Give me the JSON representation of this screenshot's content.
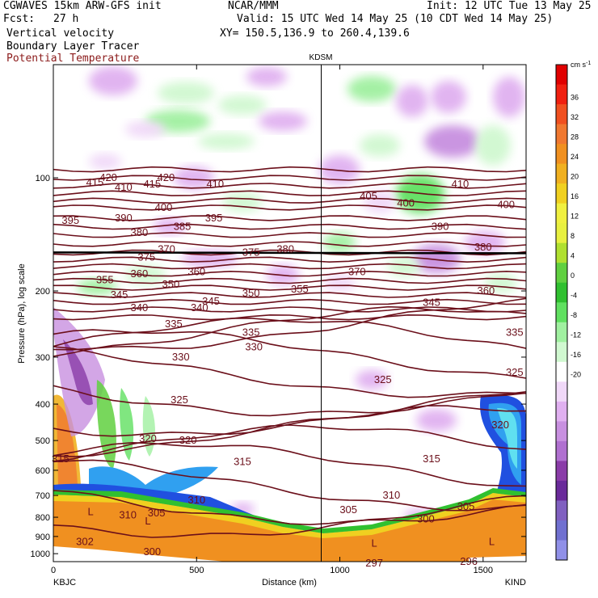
{
  "header": {
    "model": "CGWAVES 15km ARW-GFS init",
    "fcst_label": "Fcst:",
    "fcst_value": "27 h",
    "center": "NCAR/MMM",
    "init": "Init: 12 UTC Tue 13 May 25",
    "valid": "Valid: 15 UTC Wed 14 May 25 (10 CDT Wed 14 May 25)",
    "field1": "Vertical velocity",
    "field2": "Boundary Layer Tracer",
    "field3": "Potential Temperature",
    "xy": "XY= 150.5,136.9 to 260.4,139.6"
  },
  "colors": {
    "theta": "#6b0f1a",
    "tropopause": "#000000",
    "frame": "#000000"
  },
  "chart_data": {
    "type": "heatmap",
    "xlabel": "Distance (km)",
    "ylabel": "Pressure (hPa), log scale",
    "xlim": [
      0,
      1650
    ],
    "ylim": [
      1050,
      50
    ],
    "yscale": "log",
    "x_ticks": [
      0,
      500,
      1000,
      1500
    ],
    "y_ticks": [
      100,
      200,
      300,
      400,
      500,
      600,
      700,
      800,
      900,
      1000
    ],
    "station_left": "KBJC",
    "station_right": "KIND",
    "station_mid": {
      "name": "KDSM",
      "x": 935
    },
    "colorbar": {
      "unit": "cm s",
      "unit_exp": "-1",
      "ticks": [
        36,
        32,
        28,
        24,
        20,
        16,
        12,
        8,
        4,
        0,
        -4,
        -8,
        -12,
        -16,
        -20
      ],
      "colors": [
        "#e00000",
        "#f02010",
        "#f05020",
        "#f07830",
        "#f09020",
        "#f0b020",
        "#f0d020",
        "#f0f040",
        "#e8f040",
        "#b0e030",
        "#60d040",
        "#30c030",
        "#60e060",
        "#a0f0a0",
        "#d0f8d0",
        "#ffffff",
        "#f0d8f8",
        "#e0b0f0",
        "#c890e0",
        "#b070d0",
        "#8a3ca8",
        "#6a2a9a",
        "#8060c0",
        "#7070d0",
        "#9090e8"
      ]
    },
    "theta_labels": [
      {
        "v": "415",
        "x": 145,
        "p": 103
      },
      {
        "v": "420",
        "x": 192,
        "p": 100
      },
      {
        "v": "410",
        "x": 245,
        "p": 106
      },
      {
        "v": "415",
        "x": 345,
        "p": 104
      },
      {
        "v": "420",
        "x": 393,
        "p": 100
      },
      {
        "v": "410",
        "x": 565,
        "p": 104
      },
      {
        "v": "405",
        "x": 1100,
        "p": 112
      },
      {
        "v": "400",
        "x": 1230,
        "p": 117
      },
      {
        "v": "410",
        "x": 1420,
        "p": 104
      },
      {
        "v": "400",
        "x": 1580,
        "p": 118
      },
      {
        "v": "395",
        "x": 60,
        "p": 130
      },
      {
        "v": "390",
        "x": 245,
        "p": 128
      },
      {
        "v": "400",
        "x": 385,
        "p": 120
      },
      {
        "v": "380",
        "x": 300,
        "p": 140
      },
      {
        "v": "385",
        "x": 450,
        "p": 135
      },
      {
        "v": "395",
        "x": 560,
        "p": 128
      },
      {
        "v": "390",
        "x": 1350,
        "p": 135
      },
      {
        "v": "370",
        "x": 395,
        "p": 155
      },
      {
        "v": "375",
        "x": 325,
        "p": 163
      },
      {
        "v": "360",
        "x": 300,
        "p": 180
      },
      {
        "v": "360",
        "x": 500,
        "p": 178
      },
      {
        "v": "355",
        "x": 180,
        "p": 187
      },
      {
        "v": "345",
        "x": 230,
        "p": 205
      },
      {
        "v": "350",
        "x": 410,
        "p": 192
      },
      {
        "v": "345",
        "x": 550,
        "p": 213
      },
      {
        "v": "375",
        "x": 690,
        "p": 158
      },
      {
        "v": "380",
        "x": 810,
        "p": 155
      },
      {
        "v": "350",
        "x": 690,
        "p": 203
      },
      {
        "v": "355",
        "x": 860,
        "p": 198
      },
      {
        "v": "370",
        "x": 1060,
        "p": 178
      },
      {
        "v": "360",
        "x": 1510,
        "p": 200
      },
      {
        "v": "345",
        "x": 1320,
        "p": 215
      },
      {
        "v": "380",
        "x": 1500,
        "p": 153
      },
      {
        "v": "340",
        "x": 300,
        "p": 222
      },
      {
        "v": "335",
        "x": 420,
        "p": 245
      },
      {
        "v": "340",
        "x": 510,
        "p": 222
      },
      {
        "v": "335",
        "x": 690,
        "p": 258
      },
      {
        "v": "330",
        "x": 700,
        "p": 282
      },
      {
        "v": "335",
        "x": 1610,
        "p": 258
      },
      {
        "v": "330",
        "x": 445,
        "p": 300
      },
      {
        "v": "325",
        "x": 440,
        "p": 390
      },
      {
        "v": "325",
        "x": 1150,
        "p": 345
      },
      {
        "v": "325",
        "x": 1610,
        "p": 330
      },
      {
        "v": "320",
        "x": 330,
        "p": 495
      },
      {
        "v": "320",
        "x": 470,
        "p": 500
      },
      {
        "v": "320",
        "x": 1560,
        "p": 455
      },
      {
        "v": "315",
        "x": 25,
        "p": 560
      },
      {
        "v": "315",
        "x": 660,
        "p": 570
      },
      {
        "v": "315",
        "x": 1320,
        "p": 560
      },
      {
        "v": "310",
        "x": 500,
        "p": 720
      },
      {
        "v": "310",
        "x": 1180,
        "p": 700
      },
      {
        "v": "305",
        "x": 360,
        "p": 780
      },
      {
        "v": "305",
        "x": 1030,
        "p": 765
      },
      {
        "v": "305",
        "x": 1440,
        "p": 750
      },
      {
        "v": "310",
        "x": 260,
        "p": 790
      },
      {
        "v": "300",
        "x": 1300,
        "p": 810
      },
      {
        "v": "302",
        "x": 110,
        "p": 930
      },
      {
        "v": "300",
        "x": 345,
        "p": 990
      },
      {
        "v": "297",
        "x": 1120,
        "p": 1060
      },
      {
        "v": "296",
        "x": 1450,
        "p": 1050
      }
    ],
    "low_labels": [
      {
        "v": "L",
        "x": 130,
        "p": 775
      },
      {
        "v": "L",
        "x": 330,
        "p": 820
      },
      {
        "v": "L",
        "x": 1120,
        "p": 940
      },
      {
        "v": "L",
        "x": 1530,
        "p": 930
      }
    ]
  }
}
